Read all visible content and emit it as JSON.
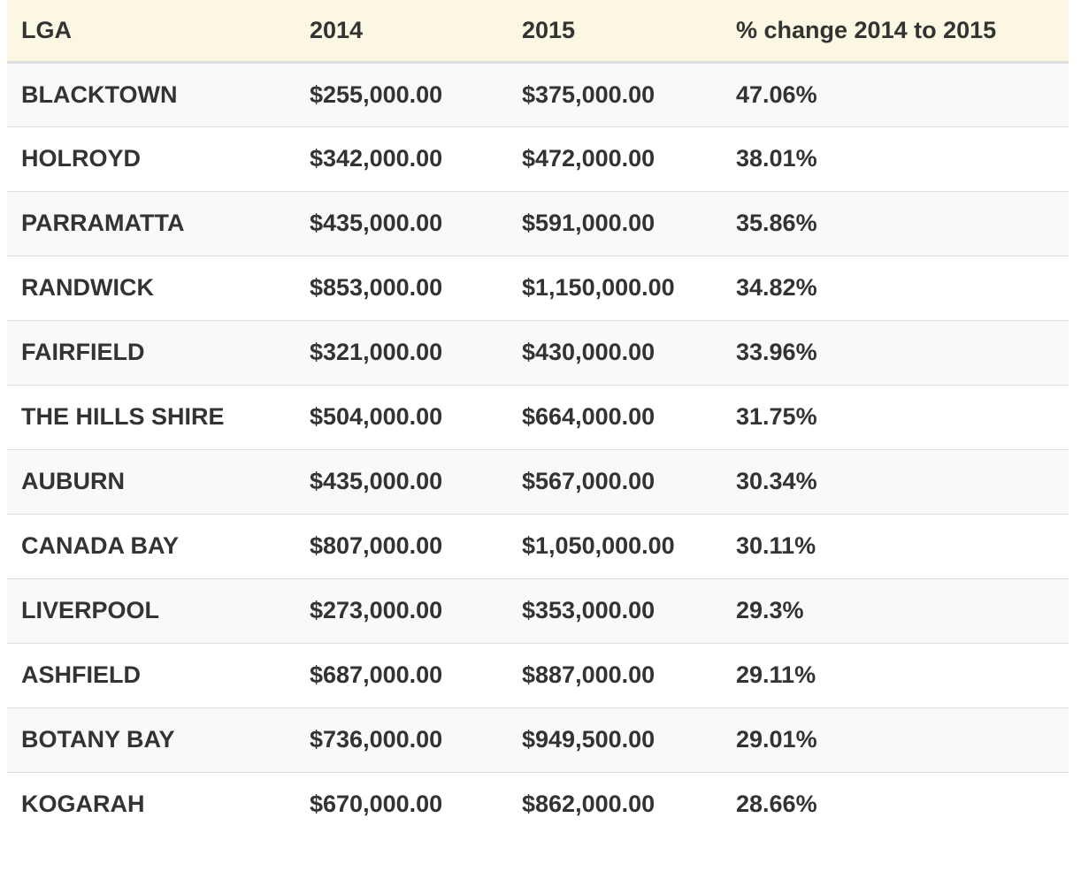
{
  "chart_data": {
    "type": "table",
    "columns": [
      "LGA",
      "2014",
      "2015",
      "% change 2014 to 2015"
    ],
    "rows": [
      [
        "BLACKTOWN",
        "$255,000.00",
        "$375,000.00",
        "47.06%"
      ],
      [
        "HOLROYD",
        "$342,000.00",
        "$472,000.00",
        "38.01%"
      ],
      [
        "PARRAMATTA",
        "$435,000.00",
        "$591,000.00",
        "35.86%"
      ],
      [
        "RANDWICK",
        "$853,000.00",
        "$1,150,000.00",
        "34.82%"
      ],
      [
        "FAIRFIELD",
        "$321,000.00",
        "$430,000.00",
        "33.96%"
      ],
      [
        "THE HILLS SHIRE",
        "$504,000.00",
        "$664,000.00",
        "31.75%"
      ],
      [
        "AUBURN",
        "$435,000.00",
        "$567,000.00",
        "30.34%"
      ],
      [
        "CANADA BAY",
        "$807,000.00",
        "$1,050,000.00",
        "30.11%"
      ],
      [
        "LIVERPOOL",
        "$273,000.00",
        "$353,000.00",
        "29.3%"
      ],
      [
        "ASHFIELD",
        "$687,000.00",
        "$887,000.00",
        "29.11%"
      ],
      [
        "BOTANY BAY",
        "$736,000.00",
        "$949,500.00",
        "29.01%"
      ],
      [
        "KOGARAH",
        "$670,000.00",
        "$862,000.00",
        "28.66%"
      ]
    ]
  },
  "colors": {
    "header_background": "#fcf7e3",
    "striped_row": "#f9f9f9",
    "border": "#dddddd",
    "text": "#333333"
  }
}
